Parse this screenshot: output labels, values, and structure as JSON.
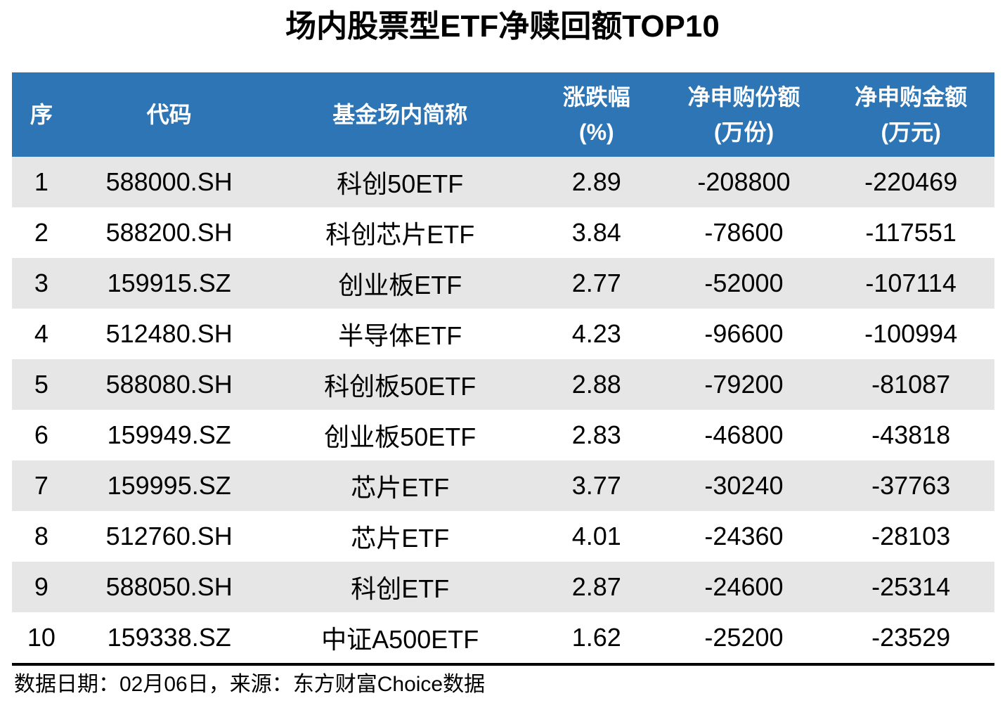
{
  "title": "场内股票型ETF净赎回额TOP10",
  "colors": {
    "header_bg": "#2E75B6",
    "header_text": "#FFFFFF",
    "row_alt_bg": "#E7E6E6",
    "row_bg": "#FFFFFF",
    "title_text": "#000000",
    "body_text": "#000000",
    "divider": "#000000"
  },
  "table": {
    "headers": [
      {
        "label": "序",
        "sub": ""
      },
      {
        "label": "代码",
        "sub": ""
      },
      {
        "label": "基金场内简称",
        "sub": ""
      },
      {
        "label": "涨跌幅",
        "sub": "(%)"
      },
      {
        "label": "净申购份额",
        "sub": "(万份)"
      },
      {
        "label": "净申购金额",
        "sub": "(万元)"
      }
    ],
    "rows": [
      {
        "rank": "1",
        "code": "588000.SH",
        "name": "科创50ETF",
        "change_pct": "2.89",
        "net_shares": "-208800",
        "net_amount": "-220469"
      },
      {
        "rank": "2",
        "code": "588200.SH",
        "name": "科创芯片ETF",
        "change_pct": "3.84",
        "net_shares": "-78600",
        "net_amount": "-117551"
      },
      {
        "rank": "3",
        "code": "159915.SZ",
        "name": "创业板ETF",
        "change_pct": "2.77",
        "net_shares": "-52000",
        "net_amount": "-107114"
      },
      {
        "rank": "4",
        "code": "512480.SH",
        "name": "半导体ETF",
        "change_pct": "4.23",
        "net_shares": "-96600",
        "net_amount": "-100994"
      },
      {
        "rank": "5",
        "code": "588080.SH",
        "name": "科创板50ETF",
        "change_pct": "2.88",
        "net_shares": "-79200",
        "net_amount": "-81087"
      },
      {
        "rank": "6",
        "code": "159949.SZ",
        "name": "创业板50ETF",
        "change_pct": "2.83",
        "net_shares": "-46800",
        "net_amount": "-43818"
      },
      {
        "rank": "7",
        "code": "159995.SZ",
        "name": "芯片ETF",
        "change_pct": "3.77",
        "net_shares": "-30240",
        "net_amount": "-37763"
      },
      {
        "rank": "8",
        "code": "512760.SH",
        "name": "芯片ETF",
        "change_pct": "4.01",
        "net_shares": "-24360",
        "net_amount": "-28103"
      },
      {
        "rank": "9",
        "code": "588050.SH",
        "name": "科创ETF",
        "change_pct": "2.87",
        "net_shares": "-24600",
        "net_amount": "-25314"
      },
      {
        "rank": "10",
        "code": "159338.SZ",
        "name": "中证A500ETF",
        "change_pct": "1.62",
        "net_shares": "-25200",
        "net_amount": "-23529"
      }
    ]
  },
  "footer": {
    "note": "数据日期：02月06日，来源：东方财富Choice数据"
  },
  "chart_data": {
    "type": "table",
    "title": "场内股票型ETF净赎回额TOP10",
    "columns": [
      "序",
      "代码",
      "基金场内简称",
      "涨跌幅(%)",
      "净申购份额(万份)",
      "净申购金额(万元)"
    ],
    "rows": [
      [
        1,
        "588000.SH",
        "科创50ETF",
        2.89,
        -208800,
        -220469
      ],
      [
        2,
        "588200.SH",
        "科创芯片ETF",
        3.84,
        -78600,
        -117551
      ],
      [
        3,
        "159915.SZ",
        "创业板ETF",
        2.77,
        -52000,
        -107114
      ],
      [
        4,
        "512480.SH",
        "半导体ETF",
        4.23,
        -96600,
        -100994
      ],
      [
        5,
        "588080.SH",
        "科创板50ETF",
        2.88,
        -79200,
        -81087
      ],
      [
        6,
        "159949.SZ",
        "创业板50ETF",
        2.83,
        -46800,
        -43818
      ],
      [
        7,
        "159995.SZ",
        "芯片ETF",
        3.77,
        -30240,
        -37763
      ],
      [
        8,
        "512760.SH",
        "芯片ETF",
        4.01,
        -24360,
        -28103
      ],
      [
        9,
        "588050.SH",
        "科创ETF",
        2.87,
        -24600,
        -25314
      ],
      [
        10,
        "159338.SZ",
        "中证A500ETF",
        1.62,
        -25200,
        -23529
      ]
    ],
    "note": "数据日期：02月06日，来源：东方财富Choice数据"
  }
}
